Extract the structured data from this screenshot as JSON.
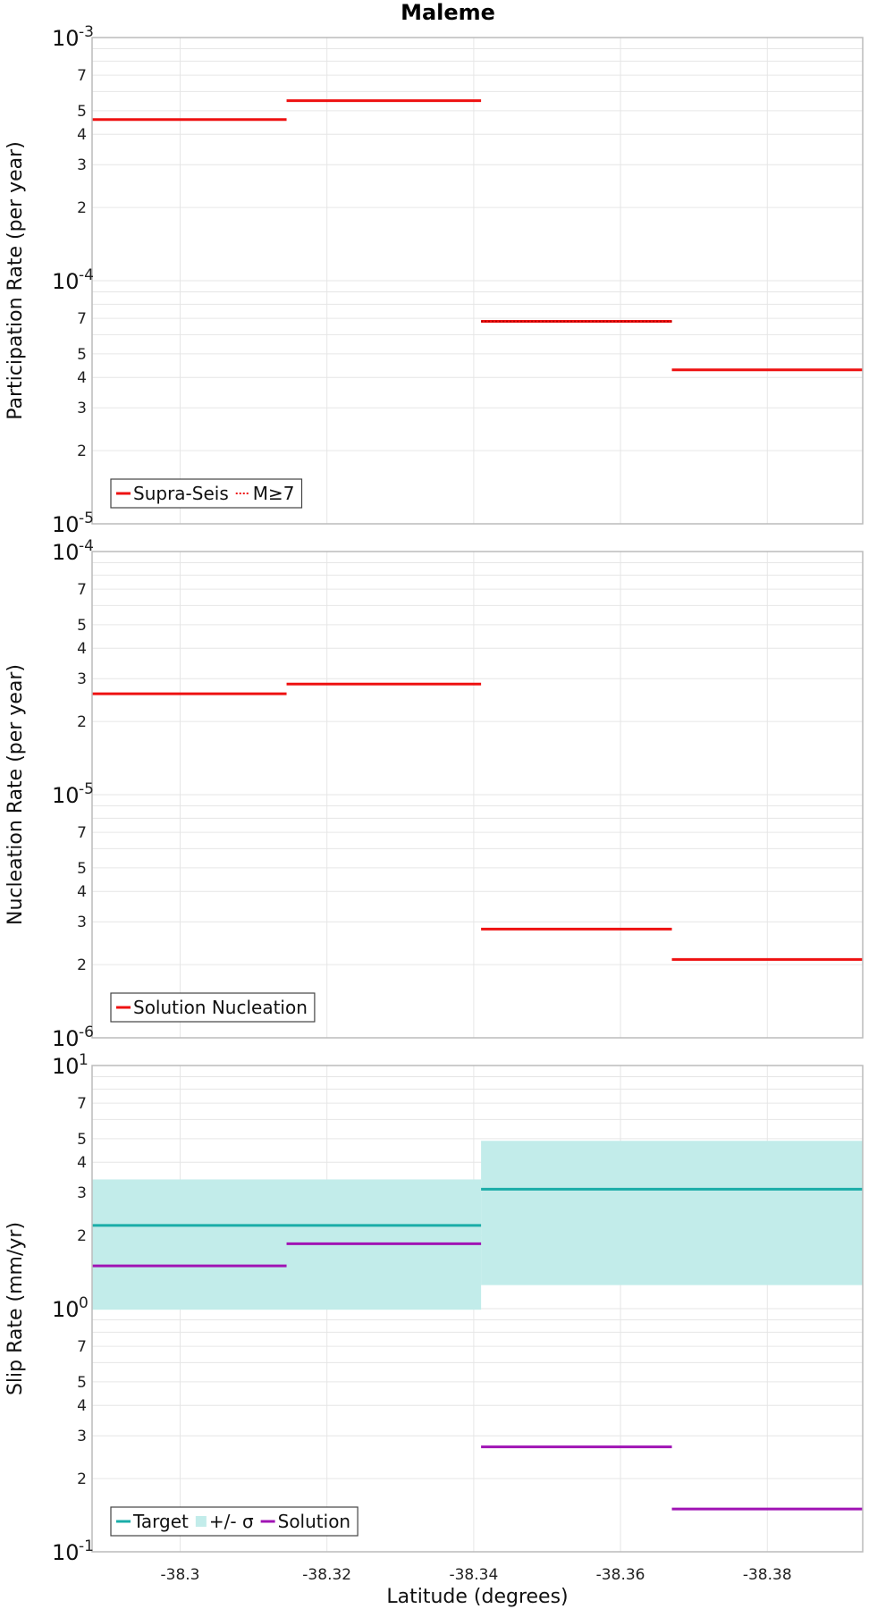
{
  "chart_data": {
    "type": "line",
    "title": "Maleme",
    "xlabel": "Latitude (degrees)",
    "xlim": [
      -38.288,
      -38.393
    ],
    "x_ticks": [
      -38.3,
      -38.32,
      -38.34,
      -38.36,
      -38.38
    ],
    "x_tick_labels": [
      "-38.3",
      "-38.32",
      "-38.34",
      "-38.36",
      "-38.38"
    ],
    "panels": [
      {
        "ylabel": "Participation Rate (per year)",
        "yscale": "log",
        "ylim": [
          1e-05,
          0.001
        ],
        "decade_labels": [
          {
            "base": "10",
            "exp": "-3"
          },
          {
            "base": "10",
            "exp": "-4"
          },
          {
            "base": "10",
            "exp": "-5"
          }
        ],
        "minor_labels": [
          "7",
          "5",
          "4",
          "3",
          "2"
        ],
        "segments": [
          {
            "x": [
              -38.288,
              -38.3145
            ],
            "y": 0.00046
          },
          {
            "x": [
              -38.3145,
              -38.341
            ],
            "y": 0.00055
          },
          {
            "x": [
              -38.341,
              -38.367
            ],
            "y": 6.8e-05
          },
          {
            "x": [
              -38.367,
              -38.393
            ],
            "y": 4.3e-05
          }
        ],
        "series": [
          {
            "name": "Supra-Seis",
            "color": "#ee1111",
            "style": "solid",
            "segment_indices": [
              0,
              1,
              2,
              3
            ]
          },
          {
            "name": "M≥7",
            "color": "#ee1111",
            "style": "dotted",
            "segment_indices": [
              2
            ]
          }
        ],
        "legend": {
          "position": "bottom-left",
          "items": [
            {
              "label": "Supra-Seis",
              "color": "#ee1111",
              "style": "solid"
            },
            {
              "label": "M≥7",
              "color": "#ee1111",
              "style": "dotted"
            }
          ]
        }
      },
      {
        "ylabel": "Nucleation Rate (per year)",
        "yscale": "log",
        "ylim": [
          1e-06,
          0.0001
        ],
        "decade_labels": [
          {
            "base": "10",
            "exp": "-4"
          },
          {
            "base": "10",
            "exp": "-5"
          },
          {
            "base": "10",
            "exp": "-6"
          }
        ],
        "minor_labels": [
          "7",
          "5",
          "4",
          "3",
          "2"
        ],
        "series": [
          {
            "name": "Solution Nucleation",
            "color": "#ee1111",
            "style": "solid",
            "segments": [
              {
                "x": [
                  -38.288,
                  -38.3145
                ],
                "y": 2.6e-05
              },
              {
                "x": [
                  -38.3145,
                  -38.341
                ],
                "y": 2.85e-05
              },
              {
                "x": [
                  -38.341,
                  -38.367
                ],
                "y": 2.8e-06
              },
              {
                "x": [
                  -38.367,
                  -38.393
                ],
                "y": 2.1e-06
              }
            ]
          }
        ],
        "legend": {
          "position": "bottom-left",
          "items": [
            {
              "label": "Solution Nucleation",
              "color": "#ee1111",
              "style": "solid"
            }
          ]
        }
      },
      {
        "ylabel": "Slip Rate (mm/yr)",
        "yscale": "log",
        "ylim": [
          0.1,
          10
        ],
        "decade_labels": [
          {
            "base": "10",
            "exp": "1"
          },
          {
            "base": "10",
            "exp": "0"
          },
          {
            "base": "10",
            "exp": "-1"
          }
        ],
        "minor_labels": [
          "7",
          "5",
          "4",
          "3",
          "2"
        ],
        "bands": [
          {
            "name": "+/- σ",
            "color": "#c2ecea",
            "segments": [
              {
                "x": [
                  -38.288,
                  -38.341
                ],
                "low": 0.99,
                "high": 3.4
              },
              {
                "x": [
                  -38.341,
                  -38.393
                ],
                "low": 1.25,
                "high": 4.9
              }
            ]
          }
        ],
        "series": [
          {
            "name": "Target",
            "color": "#1aada8",
            "style": "solid",
            "segments": [
              {
                "x": [
                  -38.288,
                  -38.341
                ],
                "y": 2.2
              },
              {
                "x": [
                  -38.341,
                  -38.393
                ],
                "y": 3.1
              }
            ]
          },
          {
            "name": "Solution",
            "color": "#a014b4",
            "style": "solid",
            "segments": [
              {
                "x": [
                  -38.288,
                  -38.3145
                ],
                "y": 1.5
              },
              {
                "x": [
                  -38.3145,
                  -38.341
                ],
                "y": 1.85
              },
              {
                "x": [
                  -38.341,
                  -38.367
                ],
                "y": 0.27
              },
              {
                "x": [
                  -38.367,
                  -38.393
                ],
                "y": 0.15
              }
            ]
          }
        ],
        "legend": {
          "position": "bottom-left",
          "items": [
            {
              "label": "Target",
              "color": "#1aada8",
              "style": "solid"
            },
            {
              "label": "+/- σ",
              "color": "#c2ecea",
              "style": "band"
            },
            {
              "label": "Solution",
              "color": "#a014b4",
              "style": "solid"
            }
          ]
        }
      }
    ]
  }
}
